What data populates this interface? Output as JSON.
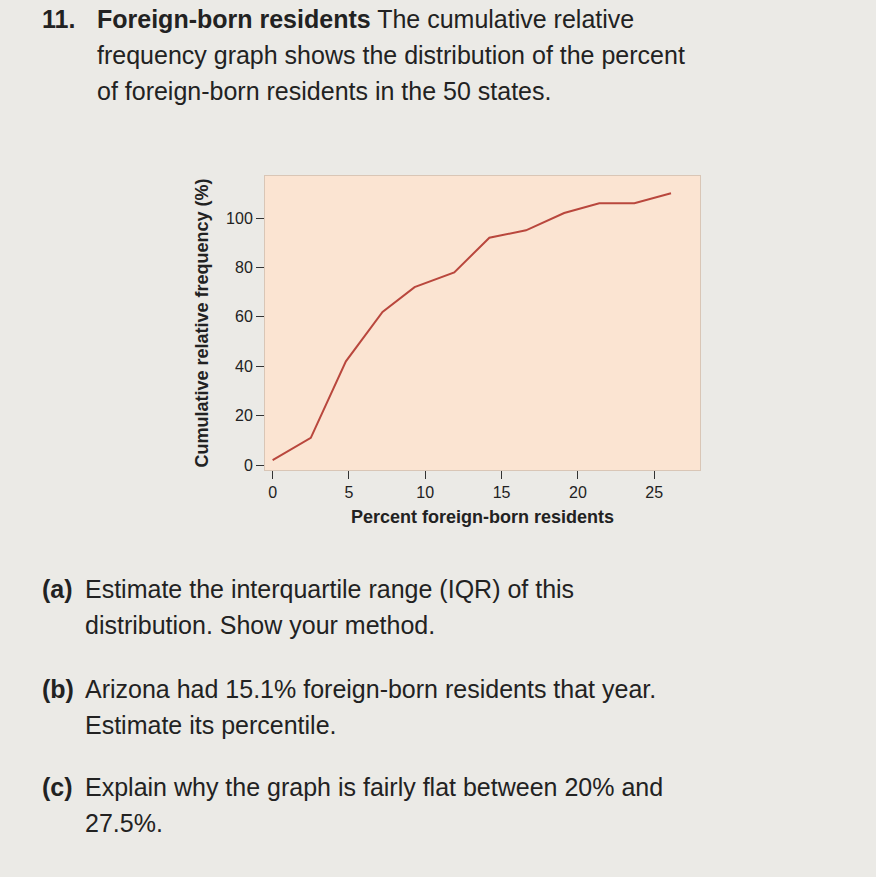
{
  "page": {
    "number": "11.",
    "heading": "Foreign-born residents",
    "intro_lines": [
      "The cumulative relative",
      "frequency graph shows the distribution of the percent",
      "of foreign-born residents in the 50 states."
    ]
  },
  "chart_data": {
    "type": "line",
    "x_label": "Percent foreign-born residents",
    "y_label": "Cumulative relative frequency (%)",
    "x": [
      0,
      2.5,
      4.8,
      7.2,
      9.3,
      11.9,
      14.2,
      16.6,
      19.1,
      21.4,
      23.7,
      26.1
    ],
    "values": [
      2,
      11,
      42,
      62,
      72,
      78,
      92,
      95,
      102,
      106,
      106,
      110
    ],
    "color": "#b9473d",
    "xlim": [
      -0.5,
      28
    ],
    "ylim": [
      -2,
      117
    ],
    "xticks": [
      0,
      5,
      10,
      15,
      20,
      25
    ],
    "yticks": [
      0,
      20,
      40,
      60,
      80,
      100
    ],
    "grid": false
  },
  "questions": [
    {
      "label": "(a)",
      "lines": [
        "Estimate the interquartile range (IQR) of this",
        "distribution. Show your method."
      ]
    },
    {
      "label": "(b)",
      "lines": [
        "Arizona had 15.1% foreign-born residents that year.",
        "Estimate its percentile."
      ]
    },
    {
      "label": "(c)",
      "lines": [
        "Explain why the graph is fairly flat between 20% and",
        "27.5%."
      ]
    }
  ]
}
